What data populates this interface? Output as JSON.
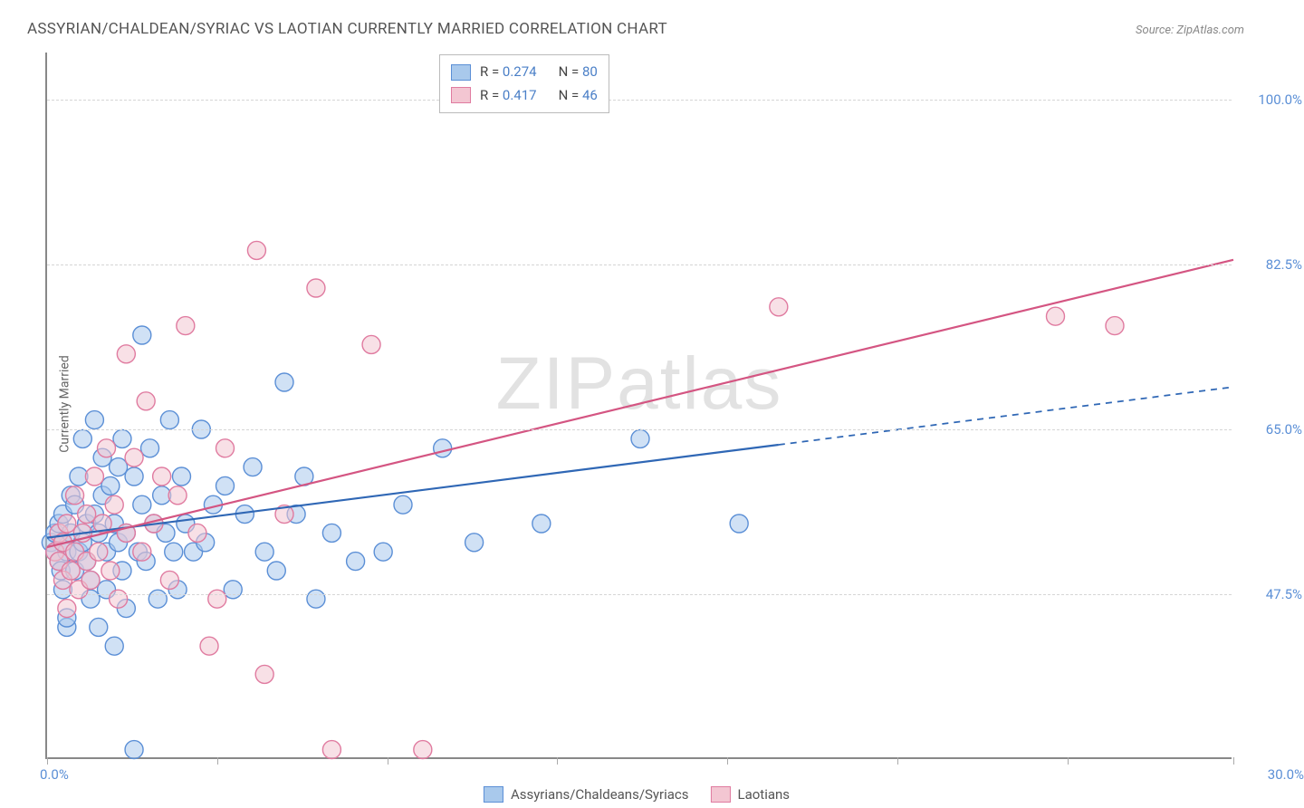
{
  "title": "ASSYRIAN/CHALDEAN/SYRIAC VS LAOTIAN CURRENTLY MARRIED CORRELATION CHART",
  "source": "Source: ZipAtlas.com",
  "ylabel": "Currently Married",
  "watermark": "ZIPatlas",
  "chart": {
    "type": "scatter",
    "xlim": [
      0,
      30
    ],
    "ylim": [
      30,
      105
    ],
    "xtick_positions": [
      0,
      4.3,
      8.6,
      12.9,
      17.2,
      21.5,
      25.8,
      30
    ],
    "ytick_values": [
      47.5,
      65.0,
      82.5,
      100.0
    ],
    "ytick_labels": [
      "47.5%",
      "65.0%",
      "82.5%",
      "100.0%"
    ],
    "xaxis_min_label": "0.0%",
    "xaxis_max_label": "30.0%",
    "background_color": "#ffffff",
    "grid_color": "#d5d5d5",
    "axis_color": "#888888",
    "tick_label_color": "#5b8fd6",
    "series": [
      {
        "name": "Assyrians/Chaldeans/Syriacs",
        "fill": "#a9c9ec",
        "stroke": "#5b8fd6",
        "fill_opacity": 0.55,
        "marker_radius": 10,
        "R": "0.274",
        "N": "80",
        "trend": {
          "y_at_xmin": 53.5,
          "y_at_xmax": 69.5,
          "solid_until_x": 18.5,
          "color": "#2f67b5",
          "width": 2.2
        },
        "points": [
          [
            0.1,
            53
          ],
          [
            0.2,
            54
          ],
          [
            0.2,
            52
          ],
          [
            0.3,
            51
          ],
          [
            0.3,
            55
          ],
          [
            0.35,
            50
          ],
          [
            0.4,
            53
          ],
          [
            0.4,
            56
          ],
          [
            0.4,
            48
          ],
          [
            0.5,
            44
          ],
          [
            0.5,
            45
          ],
          [
            0.5,
            52
          ],
          [
            0.6,
            54
          ],
          [
            0.6,
            58
          ],
          [
            0.7,
            57
          ],
          [
            0.7,
            50
          ],
          [
            0.8,
            52
          ],
          [
            0.8,
            60
          ],
          [
            0.9,
            53
          ],
          [
            0.9,
            64
          ],
          [
            1.0,
            55
          ],
          [
            1.0,
            51
          ],
          [
            1.1,
            47
          ],
          [
            1.1,
            49
          ],
          [
            1.2,
            56
          ],
          [
            1.2,
            66
          ],
          [
            1.3,
            54
          ],
          [
            1.3,
            44
          ],
          [
            1.4,
            58
          ],
          [
            1.4,
            62
          ],
          [
            1.5,
            52
          ],
          [
            1.5,
            48
          ],
          [
            1.6,
            59
          ],
          [
            1.7,
            55
          ],
          [
            1.7,
            42
          ],
          [
            1.8,
            53
          ],
          [
            1.8,
            61
          ],
          [
            1.9,
            50
          ],
          [
            1.9,
            64
          ],
          [
            2.0,
            54
          ],
          [
            2.0,
            46
          ],
          [
            2.2,
            60
          ],
          [
            2.3,
            52
          ],
          [
            2.4,
            75
          ],
          [
            2.4,
            57
          ],
          [
            2.5,
            51
          ],
          [
            2.6,
            63
          ],
          [
            2.7,
            55
          ],
          [
            2.8,
            47
          ],
          [
            2.9,
            58
          ],
          [
            3.0,
            54
          ],
          [
            3.1,
            66
          ],
          [
            3.2,
            52
          ],
          [
            3.3,
            48
          ],
          [
            3.4,
            60
          ],
          [
            3.5,
            55
          ],
          [
            3.7,
            52
          ],
          [
            3.9,
            65
          ],
          [
            4.0,
            53
          ],
          [
            4.2,
            57
          ],
          [
            4.5,
            59
          ],
          [
            4.7,
            48
          ],
          [
            5.0,
            56
          ],
          [
            5.2,
            61
          ],
          [
            5.5,
            52
          ],
          [
            5.8,
            50
          ],
          [
            6.0,
            70
          ],
          [
            6.3,
            56
          ],
          [
            6.5,
            60
          ],
          [
            6.8,
            47
          ],
          [
            7.2,
            54
          ],
          [
            7.8,
            51
          ],
          [
            8.5,
            52
          ],
          [
            9.0,
            57
          ],
          [
            10.0,
            63
          ],
          [
            10.8,
            53
          ],
          [
            12.5,
            55
          ],
          [
            15.0,
            64
          ],
          [
            17.5,
            55
          ],
          [
            2.2,
            31
          ]
        ]
      },
      {
        "name": "Laotians",
        "fill": "#f3c6d2",
        "stroke": "#e07ba0",
        "fill_opacity": 0.55,
        "marker_radius": 10,
        "R": "0.417",
        "N": "46",
        "trend": {
          "y_at_xmin": 52.5,
          "y_at_xmax": 83.0,
          "solid_until_x": 30,
          "color": "#d45582",
          "width": 2.2
        },
        "points": [
          [
            0.2,
            52
          ],
          [
            0.3,
            51
          ],
          [
            0.3,
            54
          ],
          [
            0.4,
            49
          ],
          [
            0.4,
            53
          ],
          [
            0.5,
            46
          ],
          [
            0.5,
            55
          ],
          [
            0.6,
            50
          ],
          [
            0.7,
            52
          ],
          [
            0.7,
            58
          ],
          [
            0.8,
            48
          ],
          [
            0.9,
            54
          ],
          [
            1.0,
            51
          ],
          [
            1.0,
            56
          ],
          [
            1.1,
            49
          ],
          [
            1.2,
            60
          ],
          [
            1.3,
            52
          ],
          [
            1.4,
            55
          ],
          [
            1.5,
            63
          ],
          [
            1.6,
            50
          ],
          [
            1.7,
            57
          ],
          [
            1.8,
            47
          ],
          [
            2.0,
            73
          ],
          [
            2.0,
            54
          ],
          [
            2.2,
            62
          ],
          [
            2.4,
            52
          ],
          [
            2.5,
            68
          ],
          [
            2.7,
            55
          ],
          [
            2.9,
            60
          ],
          [
            3.1,
            49
          ],
          [
            3.3,
            58
          ],
          [
            3.5,
            76
          ],
          [
            3.8,
            54
          ],
          [
            4.1,
            42
          ],
          [
            4.3,
            47
          ],
          [
            4.5,
            63
          ],
          [
            5.3,
            84
          ],
          [
            5.5,
            39
          ],
          [
            6.0,
            56
          ],
          [
            6.8,
            80
          ],
          [
            7.2,
            31
          ],
          [
            8.2,
            74
          ],
          [
            9.5,
            31
          ],
          [
            18.5,
            78
          ],
          [
            25.5,
            77
          ],
          [
            27.0,
            76
          ]
        ]
      }
    ]
  },
  "legend_bottom": {
    "items": [
      "Assyrians/Chaldeans/Syriacs",
      "Laotians"
    ]
  }
}
